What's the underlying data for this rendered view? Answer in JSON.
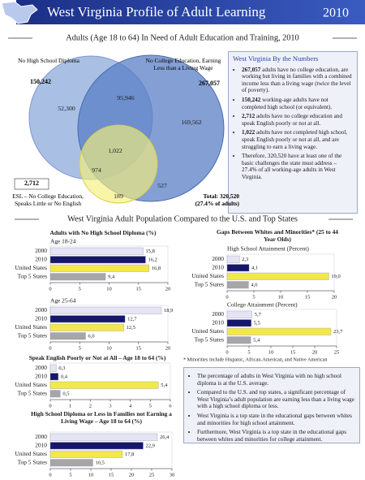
{
  "header": {
    "title": "West Virginia Profile of Adult Learning",
    "year": "2010"
  },
  "venn": {
    "title": "Adults (Age 18 to 64) In Need of Adult Education and Training, 2010",
    "circles": [
      {
        "label": "No High School Diploma",
        "total": "150,242"
      },
      {
        "label": "No College Education, Earning Less than a Living Wage",
        "total": "267,057"
      },
      {
        "label": "ESL – No College Education, Speaks Little or No English",
        "total": "2,712"
      }
    ],
    "regions": [
      "52,300",
      "95,946",
      "169,562",
      "1,022",
      "974",
      "527",
      "189"
    ],
    "total": "Total: 320,520",
    "total_note": "(27.4% of adults)"
  },
  "numbers_box": {
    "title": "West Virginia By the Numbers",
    "bullets": [
      {
        "bold": "267,057",
        "text": "adults have no college education, are working but living in families with a combined income less than a living wage (twice the level of poverty)."
      },
      {
        "bold": "150,242",
        "text": "working-age adults have not completed high school (or equivalent)."
      },
      {
        "bold": "2,712",
        "text": "adults have no college education and speak English poorly or not at all."
      },
      {
        "bold": "1,022",
        "text": "adults have not completed high school, speak English poorly or not at all, and are struggling to earn a living wage."
      },
      {
        "text": "Therefore, 320,520 have at least one of the basic challenges the state must address – 27.4% of all working-age adults in West Virginia."
      }
    ]
  },
  "comparison_title": "West Virginia Adult Population Compared to the U.S. and Top States",
  "chart_data": [
    {
      "type": "bar",
      "title": "Adults with No High School Diploma (%)",
      "subtitle": "Age 18-24",
      "categories": [
        "2000",
        "2010",
        "United States",
        "Top 5 States"
      ],
      "values": [
        15.8,
        16.2,
        16.8,
        9.4
      ],
      "value_labels": [
        "15,8",
        "16,2",
        "16,8",
        "9,4"
      ],
      "colors": [
        "#e4e4f4",
        "#16166a",
        "#f2e84a",
        "#a6a6a6"
      ],
      "xlim": [
        0,
        20
      ],
      "xticks": [
        0,
        5,
        10,
        15,
        20
      ]
    },
    {
      "type": "bar",
      "subtitle": "Age 25-64",
      "categories": [
        "2000",
        "2010",
        "United States",
        "Top 5 States"
      ],
      "values": [
        18.9,
        12.7,
        12.5,
        6.0
      ],
      "value_labels": [
        "18,9",
        "12,7",
        "12,5",
        "6,0"
      ],
      "colors": [
        "#e4e4f4",
        "#16166a",
        "#f2e84a",
        "#a6a6a6"
      ],
      "xlim": [
        0,
        20
      ],
      "xticks": [
        0,
        5,
        10,
        15,
        20
      ]
    },
    {
      "type": "bar",
      "title": "Speak English Poorly or Not at All – Age 18 to 64 (%)",
      "categories": [
        "2000",
        "2010",
        "United States",
        "Top 5 States"
      ],
      "values": [
        0.3,
        0.4,
        5.4,
        0.5
      ],
      "value_labels": [
        "0,3",
        "0,4",
        "5,4",
        "0,5"
      ],
      "colors": [
        "#e4e4f4",
        "#16166a",
        "#f2e84a",
        "#a6a6a6"
      ],
      "xlim": [
        0,
        6
      ],
      "xticks": [
        0,
        1,
        2,
        3,
        4,
        5,
        6
      ]
    },
    {
      "type": "bar",
      "title": "High School Diploma or Less in Families not Earning a Living Wage – Age 18 to 64 (%)",
      "categories": [
        "2000",
        "2010",
        "United States",
        "Top 5 States"
      ],
      "values": [
        26.4,
        22.9,
        17.8,
        10.5
      ],
      "value_labels": [
        "26,4",
        "22,9",
        "17,8",
        "10,5"
      ],
      "colors": [
        "#e4e4f4",
        "#16166a",
        "#f2e84a",
        "#a6a6a6"
      ],
      "xlim": [
        0,
        30
      ],
      "xticks": [
        0,
        5,
        10,
        15,
        20,
        25,
        30
      ]
    },
    {
      "type": "bar",
      "title": "Gaps Between Whites and Minorities* (25 to 44 Year Olds)",
      "subtitle": "High School Attainment (Percent)",
      "categories": [
        "2000",
        "2010",
        "United States",
        "Top 5 States"
      ],
      "values": [
        2.3,
        4.1,
        19.0,
        4.0
      ],
      "value_labels": [
        "2,3",
        "4,1",
        "19,0",
        "4,0"
      ],
      "colors": [
        "#e4e4f4",
        "#16166a",
        "#f2e84a",
        "#a6a6a6"
      ],
      "xlim": [
        0,
        20
      ],
      "xticks": [
        0,
        5,
        10,
        15,
        20
      ]
    },
    {
      "type": "bar",
      "subtitle": "College Attainment (Percent)",
      "categories": [
        "2000",
        "2010",
        "United States",
        "Top 5 States"
      ],
      "values": [
        5.7,
        5.5,
        23.7,
        5.4
      ],
      "value_labels": [
        "5,7",
        "5,5",
        "23,7",
        "5,4"
      ],
      "colors": [
        "#e4e4f4",
        "#16166a",
        "#f2e84a",
        "#a6a6a6"
      ],
      "xlim": [
        0,
        25
      ],
      "xticks": [
        0,
        5,
        10,
        15,
        20,
        25
      ]
    }
  ],
  "footnote": "* Minorities include Hispanic, African-American, and Native American",
  "summary_box": {
    "bullets": [
      "The percentage of adults in West Virginia with no high school diploma is at the U.S. average.",
      "Compared to the U.S. and top states, a significant percentage of West Virginia’s adult population are earning less than a living wage with a high school diploma or less.",
      "West Virginia is a top state in the educational gaps between whites and minorities for high school attainment.",
      "Furthermore, West Virginia is a top state in the educational gaps between whites and minorities for college attainment."
    ]
  }
}
